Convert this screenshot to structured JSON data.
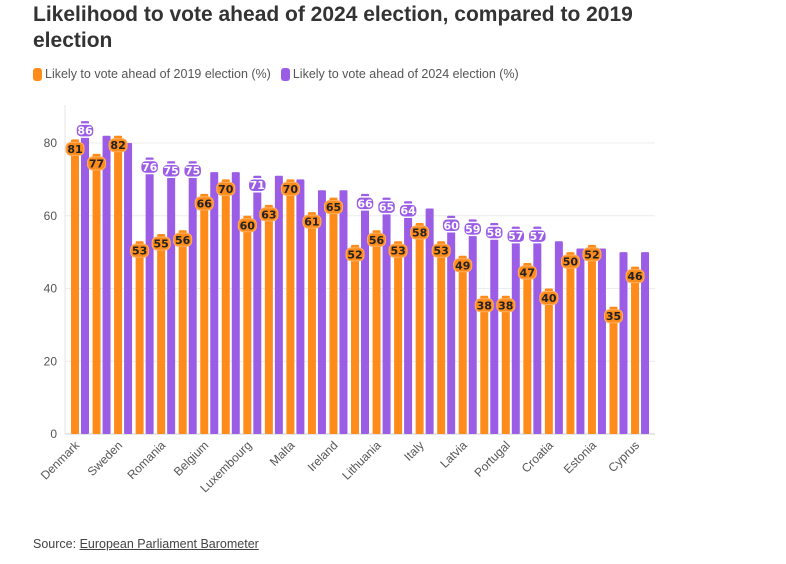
{
  "chart_data": {
    "type": "bar",
    "title": "Likelihood to vote ahead of 2024 election, compared to 2019 election",
    "tick_labels": [
      "Denmark",
      "Sweden",
      "Romania",
      "Belgium",
      "Luxembourg",
      "Malta",
      "Ireland",
      "Lithuania",
      "Italy",
      "Latvia",
      "Portugal",
      "Croatia",
      "Estonia",
      "Cyprus"
    ],
    "tick_label_every": 2,
    "ylim": [
      0,
      90
    ],
    "yticks": [
      0,
      20,
      40,
      60,
      80
    ],
    "grid": true,
    "legend_placement": "top-left",
    "series": [
      {
        "name": "Likely to vote ahead of 2019 election (%)",
        "color": "#ff8c1a",
        "values": [
          81,
          77,
          82,
          53,
          55,
          56,
          66,
          70,
          60,
          63,
          70,
          61,
          65,
          52,
          56,
          53,
          58,
          53,
          49,
          38,
          38,
          47,
          40,
          50,
          52,
          35,
          46
        ],
        "labeled": [
          true,
          true,
          true,
          true,
          true,
          true,
          true,
          true,
          true,
          true,
          true,
          true,
          true,
          true,
          true,
          true,
          true,
          true,
          true,
          true,
          true,
          true,
          true,
          true,
          true,
          true,
          true
        ]
      },
      {
        "name": "Likely to vote ahead of 2024 election (%)",
        "color": "#9b5de5",
        "values": [
          86,
          82,
          80,
          76,
          75,
          75,
          72,
          72,
          71,
          71,
          70,
          67,
          67,
          66,
          65,
          64,
          62,
          60,
          59,
          58,
          57,
          57,
          53,
          51,
          51,
          50,
          50
        ],
        "labeled": [
          true,
          false,
          false,
          true,
          true,
          true,
          false,
          false,
          true,
          false,
          false,
          false,
          false,
          true,
          true,
          true,
          false,
          true,
          true,
          true,
          true,
          true,
          false,
          false,
          false,
          false,
          false
        ]
      }
    ]
  },
  "source": {
    "prefix": "Source: ",
    "link": "European Parliament Barometer"
  }
}
